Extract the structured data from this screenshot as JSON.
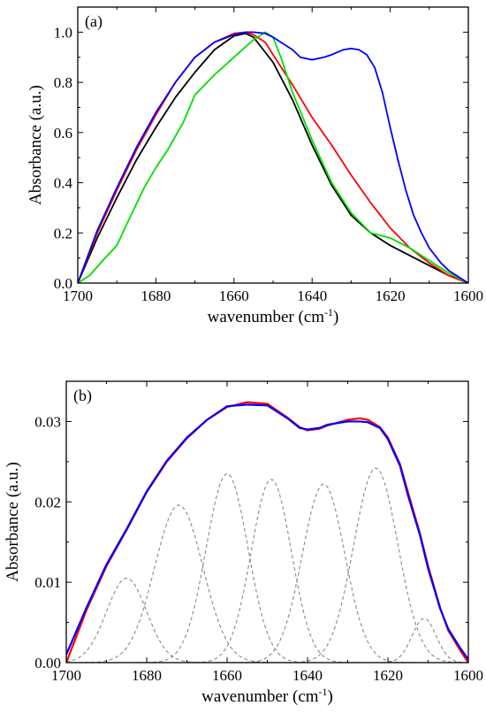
{
  "chart_data": [
    {
      "type": "line",
      "panel_label": "(a)",
      "xlabel_main": "wavenumber (cm",
      "xlabel_sup": "-1",
      "xlabel_end": ")",
      "ylabel": "Absorbance (a.u.)",
      "xlim": [
        1700,
        1600
      ],
      "ylim": [
        0,
        1.1
      ],
      "x_reversed": true,
      "xticks": [
        1700,
        1680,
        1660,
        1640,
        1620,
        1600
      ],
      "xtick_labels": [
        "1700",
        "1680",
        "1660",
        "1640",
        "1620",
        "1600"
      ],
      "yticks": [
        0.0,
        0.2,
        0.4,
        0.6,
        0.8,
        1.0
      ],
      "ytick_labels": [
        "0.0",
        "0.2",
        "0.4",
        "0.6",
        "0.8",
        "1.0"
      ],
      "grid": false,
      "series": [
        {
          "color": "#000000",
          "style": "solid",
          "x": [
            1700,
            1695,
            1690,
            1685,
            1680,
            1675,
            1670,
            1665,
            1660,
            1657,
            1655,
            1653,
            1650,
            1645,
            1640,
            1635,
            1630,
            1625,
            1620,
            1615,
            1610,
            1605,
            1600
          ],
          "y": [
            0,
            0.18,
            0.34,
            0.49,
            0.62,
            0.74,
            0.84,
            0.93,
            0.985,
            0.995,
            0.98,
            0.94,
            0.88,
            0.73,
            0.55,
            0.39,
            0.27,
            0.2,
            0.15,
            0.11,
            0.07,
            0.03,
            0
          ]
        },
        {
          "color": "#ff0000",
          "style": "solid",
          "x": [
            1700,
            1695,
            1690,
            1685,
            1680,
            1675,
            1670,
            1665,
            1660,
            1657,
            1655,
            1652,
            1650,
            1645,
            1640,
            1635,
            1630,
            1625,
            1620,
            1615,
            1610,
            1605,
            1600
          ],
          "y": [
            0,
            0.2,
            0.37,
            0.53,
            0.67,
            0.8,
            0.9,
            0.96,
            0.995,
            1.0,
            0.99,
            0.96,
            0.91,
            0.79,
            0.66,
            0.55,
            0.43,
            0.32,
            0.22,
            0.14,
            0.08,
            0.03,
            0
          ]
        },
        {
          "color": "#00dd00",
          "style": "solid",
          "x": [
            1700,
            1697,
            1693,
            1690,
            1687,
            1683,
            1680,
            1677,
            1673,
            1670,
            1665,
            1660,
            1655,
            1652,
            1650,
            1648,
            1645,
            1640,
            1635,
            1630,
            1625,
            1620,
            1615,
            1610,
            1605,
            1600
          ],
          "y": [
            0,
            0.03,
            0.1,
            0.15,
            0.25,
            0.38,
            0.46,
            0.53,
            0.64,
            0.75,
            0.83,
            0.9,
            0.97,
            1.0,
            0.98,
            0.9,
            0.76,
            0.57,
            0.4,
            0.28,
            0.2,
            0.18,
            0.14,
            0.09,
            0.04,
            0
          ]
        },
        {
          "color": "#0000ff",
          "style": "solid",
          "x": [
            1700,
            1695,
            1690,
            1685,
            1680,
            1675,
            1670,
            1665,
            1660,
            1657,
            1655,
            1652,
            1650,
            1648,
            1645,
            1643,
            1640,
            1637,
            1635,
            1632,
            1630,
            1628,
            1626,
            1624,
            1622,
            1620,
            1618,
            1616,
            1614,
            1612,
            1610,
            1607,
            1605,
            1602,
            1600
          ],
          "y": [
            0,
            0.21,
            0.38,
            0.54,
            0.68,
            0.8,
            0.9,
            0.96,
            0.99,
            1.0,
            1.0,
            0.995,
            0.98,
            0.96,
            0.93,
            0.9,
            0.89,
            0.9,
            0.91,
            0.93,
            0.935,
            0.93,
            0.91,
            0.86,
            0.76,
            0.62,
            0.49,
            0.37,
            0.27,
            0.2,
            0.14,
            0.08,
            0.05,
            0.02,
            0
          ]
        }
      ]
    },
    {
      "type": "line",
      "panel_label": "(b)",
      "xlabel_main": "wavenumber (cm",
      "xlabel_sup": "-1",
      "xlabel_end": ")",
      "ylabel": "Absorbance (a.u.)",
      "xlim": [
        1700,
        1600
      ],
      "ylim": [
        0,
        0.035
      ],
      "x_reversed": true,
      "xticks": [
        1700,
        1680,
        1660,
        1640,
        1620,
        1600
      ],
      "xtick_labels": [
        "1700",
        "1680",
        "1660",
        "1640",
        "1620",
        "1600"
      ],
      "yticks": [
        0.0,
        0.01,
        0.02,
        0.03
      ],
      "ytick_labels": [
        "0.00",
        "0.01",
        "0.02",
        "0.03"
      ],
      "grid": false,
      "series": [
        {
          "color": "#ff0000",
          "style": "solid",
          "width": 2.2,
          "x": [
            1700,
            1695,
            1690,
            1685,
            1680,
            1675,
            1670,
            1665,
            1660,
            1655,
            1650,
            1645,
            1642,
            1640,
            1637,
            1635,
            1630,
            1627,
            1625,
            1622,
            1620,
            1617,
            1615,
            1612,
            1610,
            1607,
            1605,
            1602,
            1600
          ],
          "y": [
            0,
            0.0065,
            0.012,
            0.0165,
            0.0212,
            0.025,
            0.0279,
            0.0302,
            0.0318,
            0.0324,
            0.0322,
            0.0305,
            0.0293,
            0.0289,
            0.0291,
            0.0295,
            0.0302,
            0.0304,
            0.0302,
            0.0293,
            0.028,
            0.0247,
            0.0212,
            0.016,
            0.012,
            0.0068,
            0.004,
            0.0015,
            0
          ]
        },
        {
          "color": "#0000ff",
          "style": "solid",
          "width": 2.2,
          "x": [
            1700,
            1695,
            1690,
            1685,
            1680,
            1675,
            1670,
            1665,
            1660,
            1655,
            1650,
            1645,
            1642,
            1640,
            1637,
            1635,
            1630,
            1627,
            1625,
            1622,
            1620,
            1617,
            1615,
            1612,
            1610,
            1607,
            1605,
            1602,
            1600
          ],
          "y": [
            0.001,
            0.0068,
            0.0122,
            0.0166,
            0.0213,
            0.0251,
            0.028,
            0.0302,
            0.0319,
            0.0321,
            0.032,
            0.0304,
            0.0292,
            0.029,
            0.0292,
            0.0296,
            0.03,
            0.03,
            0.0299,
            0.0292,
            0.0278,
            0.0245,
            0.0208,
            0.0158,
            0.0117,
            0.0067,
            0.0042,
            0.0018,
            0.0004
          ]
        },
        {
          "color": "#888888",
          "style": "dashed",
          "gaussian": {
            "center": 1685,
            "amplitude": 0.0105,
            "sigma": 5.0
          }
        },
        {
          "color": "#888888",
          "style": "dashed",
          "gaussian": {
            "center": 1672,
            "amplitude": 0.0196,
            "sigma": 6.0
          }
        },
        {
          "color": "#888888",
          "style": "dashed",
          "gaussian": {
            "center": 1660,
            "amplitude": 0.0235,
            "sigma": 5.2
          }
        },
        {
          "color": "#888888",
          "style": "dashed",
          "gaussian": {
            "center": 1649,
            "amplitude": 0.0228,
            "sigma": 5.0
          }
        },
        {
          "color": "#888888",
          "style": "dashed",
          "gaussian": {
            "center": 1636,
            "amplitude": 0.0222,
            "sigma": 5.3
          }
        },
        {
          "color": "#888888",
          "style": "dashed",
          "gaussian": {
            "center": 1623,
            "amplitude": 0.0242,
            "sigma": 5.5
          }
        },
        {
          "color": "#888888",
          "style": "dashed",
          "gaussian": {
            "center": 1611,
            "amplitude": 0.0055,
            "sigma": 3.0
          }
        }
      ]
    }
  ]
}
